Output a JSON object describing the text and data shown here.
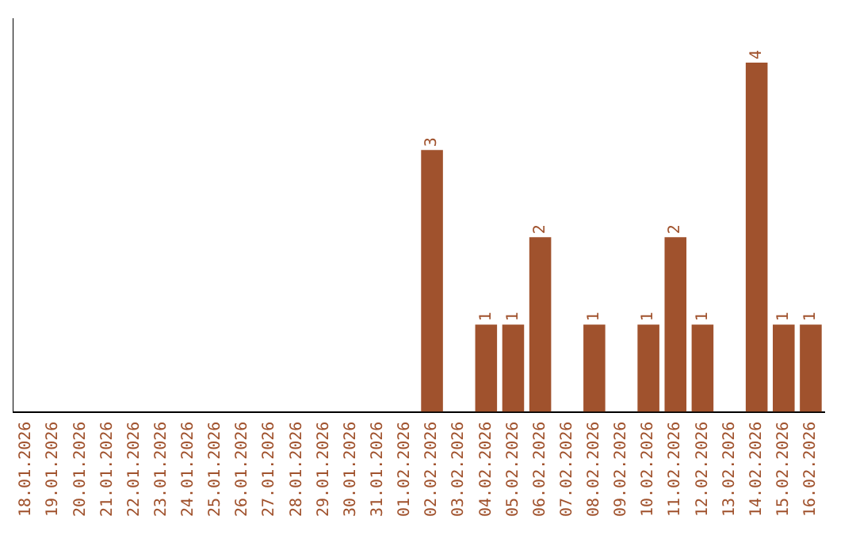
{
  "chart_data": {
    "type": "bar",
    "categories": [
      "18.01.2026",
      "19.01.2026",
      "20.01.2026",
      "21.01.2026",
      "22.01.2026",
      "23.01.2026",
      "24.01.2026",
      "25.01.2026",
      "26.01.2026",
      "27.01.2026",
      "28.01.2026",
      "29.01.2026",
      "30.01.2026",
      "31.01.2026",
      "01.02.2026",
      "02.02.2026",
      "03.02.2026",
      "04.02.2026",
      "05.02.2026",
      "06.02.2026",
      "07.02.2026",
      "08.02.2026",
      "09.02.2026",
      "10.02.2026",
      "11.02.2026",
      "12.02.2026",
      "13.02.2026",
      "14.02.2026",
      "15.02.2026",
      "16.02.2026"
    ],
    "values": [
      null,
      null,
      null,
      null,
      null,
      null,
      null,
      null,
      null,
      null,
      null,
      null,
      null,
      null,
      null,
      3,
      null,
      1,
      1,
      2,
      null,
      1,
      null,
      1,
      2,
      1,
      null,
      4,
      1,
      1
    ],
    "data_labels": true,
    "color": "#a0522d",
    "grid": false,
    "legend": false,
    "tick_labels": "x"
  }
}
